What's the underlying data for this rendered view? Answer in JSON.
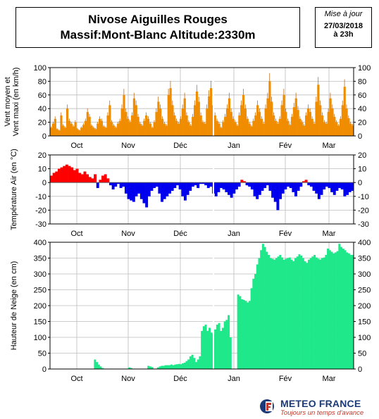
{
  "header": {
    "title_line1": "Nivose Aiguilles Rouges",
    "title_line2": "Massif:Mont-Blanc Altitude:2330m",
    "update_label": "Mise à jour",
    "update_date": "27/03/2018",
    "update_hour": "à 23h"
  },
  "logo": {
    "name": "METEO FRANCE",
    "tagline": "Toujours un temps d'avance"
  },
  "chart_data": [
    {
      "type": "area",
      "ylabel_lines": [
        "Vent moyen et",
        "Vent maxi (en km/h)"
      ],
      "ylim": [
        0,
        100
      ],
      "yticks": [
        0,
        20,
        40,
        60,
        80,
        100
      ],
      "xticks": [
        "Oct",
        "Nov",
        "Déc",
        "Jan",
        "Fév",
        "Mar"
      ],
      "grid": true,
      "colors": {
        "mean": "#f08c00",
        "max": "#b85a00"
      },
      "series": [
        {
          "values": [
            12,
            18,
            25,
            10,
            8,
            30,
            15,
            12,
            40,
            22,
            18,
            14,
            20,
            10,
            8,
            12,
            16,
            22,
            35,
            28,
            15,
            12,
            10,
            18,
            25,
            22,
            14,
            12,
            30,
            45,
            20,
            15,
            12,
            18,
            22,
            40,
            60,
            35,
            25,
            20,
            30,
            55,
            45,
            28,
            18,
            15,
            22,
            30,
            25,
            18,
            12,
            20,
            35,
            50,
            40,
            25,
            18,
            15,
            60,
            70,
            45,
            30,
            22,
            18,
            25,
            40,
            55,
            30,
            20,
            15,
            28,
            45,
            65,
            50,
            30,
            20,
            18,
            40,
            58,
            70,
            45,
            30,
            22,
            18,
            12,
            20,
            28,
            40,
            55,
            35,
            25,
            20,
            15,
            30,
            45,
            60,
            40,
            25,
            18,
            14,
            22,
            30,
            45,
            35,
            25,
            18,
            40,
            55,
            80,
            50,
            30,
            22,
            18,
            25,
            45,
            60,
            35,
            22,
            16,
            28,
            42,
            55,
            38,
            25,
            20,
            15,
            30,
            40,
            35,
            25,
            18,
            50,
            75,
            45,
            30,
            20,
            18,
            35,
            55,
            40,
            28,
            20,
            15,
            25,
            45,
            72,
            40,
            26,
            18,
            15
          ]
        }
      ]
    },
    {
      "type": "area",
      "ylabel": "Température Air (en °C)",
      "ylim": [
        -30,
        20
      ],
      "yticks": [
        -30,
        -20,
        -10,
        0,
        10,
        20
      ],
      "xticks": [
        "Oct",
        "Nov",
        "Déc",
        "Jan",
        "Fév",
        "Mar"
      ],
      "grid": true,
      "colors": {
        "positive": "#ff0000",
        "negative": "#0000ee"
      },
      "series": [
        {
          "values": [
            5,
            7,
            8,
            10,
            11,
            12,
            13,
            12,
            11,
            9,
            10,
            7,
            6,
            8,
            6,
            4,
            3,
            6,
            -4,
            2,
            5,
            6,
            3,
            -2,
            -5,
            -3,
            -1,
            -4,
            -3,
            -8,
            -12,
            -13,
            -14,
            -10,
            -8,
            -12,
            -15,
            -18,
            -10,
            -6,
            -4,
            -3,
            -8,
            -14,
            -12,
            -10,
            -8,
            -6,
            -4,
            -2,
            -5,
            -10,
            -13,
            -9,
            -6,
            -3,
            -2,
            -4,
            -1,
            -1,
            -2,
            -4,
            -3,
            -8,
            -10,
            -7,
            -4,
            -5,
            -7,
            -9,
            -11,
            -8,
            -5,
            -3,
            2,
            1,
            -2,
            -3,
            -5,
            -10,
            -12,
            -9,
            -6,
            -4,
            -2,
            -6,
            -11,
            -14,
            -20,
            -12,
            -8,
            -5,
            -3,
            -4,
            -7,
            -10,
            -6,
            -3,
            1,
            2,
            -2,
            -3,
            -6,
            -8,
            -12,
            -9,
            -5,
            -3,
            -4,
            -7,
            -9,
            -6,
            -4,
            -5,
            -10,
            -9,
            -7,
            -6
          ]
        }
      ]
    },
    {
      "type": "area",
      "ylabel": "Hauteur de Neige (en cm)",
      "ylim": [
        0,
        400
      ],
      "yticks": [
        0,
        50,
        100,
        150,
        200,
        250,
        300,
        350,
        400
      ],
      "xticks": [
        "Oct",
        "Nov",
        "Déc",
        "Jan",
        "Fév",
        "Mar"
      ],
      "grid": true,
      "colors": {
        "fill": "#1fe88a"
      },
      "series": [
        {
          "values": [
            0,
            0,
            0,
            0,
            0,
            0,
            0,
            0,
            0,
            0,
            0,
            0,
            0,
            0,
            0,
            0,
            0,
            0,
            0,
            0,
            0,
            0,
            0,
            30,
            22,
            14,
            8,
            3,
            0,
            0,
            0,
            0,
            0,
            0,
            0,
            0,
            0,
            0,
            0,
            0,
            0,
            5,
            3,
            0,
            0,
            0,
            0,
            0,
            0,
            0,
            0,
            10,
            8,
            6,
            0,
            0,
            5,
            8,
            10,
            10,
            12,
            12,
            12,
            14,
            12,
            14,
            15,
            16,
            15,
            18,
            20,
            25,
            30,
            40,
            45,
            35,
            22,
            30,
            40,
            120,
            135,
            140,
            120,
            130,
            115,
            110,
            125,
            140,
            145,
            120,
            130,
            150,
            155,
            170,
            100,
            0,
            0,
            0,
            235,
            230,
            220,
            218,
            215,
            210,
            215,
            255,
            285,
            300,
            330,
            350,
            375,
            395,
            385,
            370,
            360,
            350,
            348,
            345,
            350,
            355,
            360,
            352,
            345,
            348,
            350,
            352,
            345,
            340,
            350,
            355,
            362,
            358,
            350,
            340,
            335,
            345,
            350,
            355,
            360,
            352,
            348,
            345,
            350,
            352,
            360,
            380,
            375,
            370,
            365,
            368,
            372,
            395,
            385,
            380,
            375,
            368,
            365,
            360,
            360
          ]
        }
      ]
    }
  ]
}
